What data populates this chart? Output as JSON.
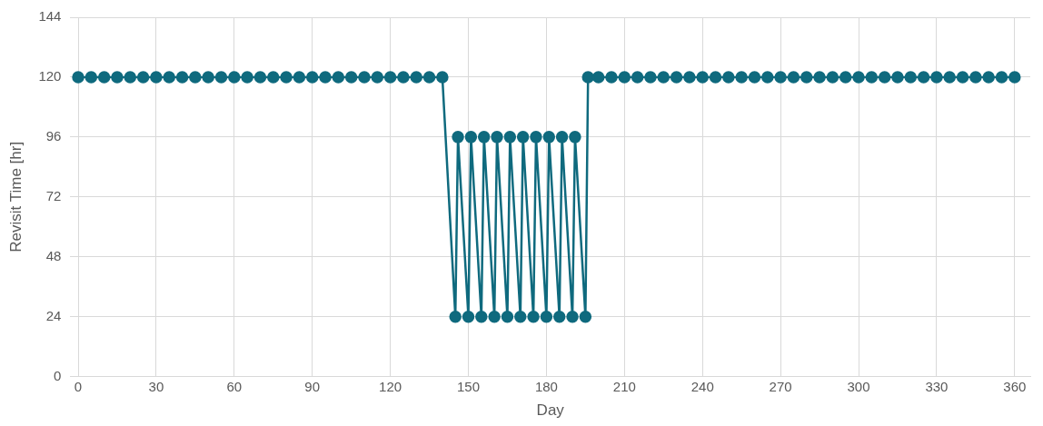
{
  "chart_data": {
    "type": "line",
    "xlabel": "Day",
    "ylabel": "Revisit Time [hr]",
    "xlim": [
      -3,
      366
    ],
    "ylim": [
      0,
      144
    ],
    "xticks": [
      0,
      30,
      60,
      90,
      120,
      150,
      180,
      210,
      240,
      270,
      300,
      330,
      360
    ],
    "yticks": [
      0,
      24,
      48,
      72,
      96,
      120,
      144
    ],
    "grid": true,
    "legend": false,
    "marker": "circle",
    "line_style": "solid",
    "series": [
      {
        "color": "#0f6a7e",
        "x": [
          0,
          5,
          10,
          15,
          20,
          25,
          30,
          35,
          40,
          45,
          50,
          55,
          60,
          65,
          70,
          75,
          80,
          85,
          90,
          95,
          100,
          105,
          110,
          115,
          120,
          125,
          130,
          135,
          140,
          145,
          146,
          150,
          151,
          155,
          156,
          160,
          161,
          165,
          166,
          170,
          171,
          175,
          176,
          180,
          181,
          185,
          186,
          190,
          191,
          195,
          196,
          200,
          205,
          210,
          215,
          220,
          225,
          230,
          235,
          240,
          245,
          250,
          255,
          260,
          265,
          270,
          275,
          280,
          285,
          290,
          295,
          300,
          305,
          310,
          315,
          320,
          325,
          330,
          335,
          340,
          345,
          350,
          355,
          360
        ],
        "values": [
          120,
          120,
          120,
          120,
          120,
          120,
          120,
          120,
          120,
          120,
          120,
          120,
          120,
          120,
          120,
          120,
          120,
          120,
          120,
          120,
          120,
          120,
          120,
          120,
          120,
          120,
          120,
          120,
          120,
          24,
          96,
          24,
          96,
          24,
          96,
          24,
          96,
          24,
          96,
          24,
          96,
          24,
          96,
          24,
          96,
          24,
          96,
          24,
          96,
          24,
          120,
          120,
          120,
          120,
          120,
          120,
          120,
          120,
          120,
          120,
          120,
          120,
          120,
          120,
          120,
          120,
          120,
          120,
          120,
          120,
          120,
          120,
          120,
          120,
          120,
          120,
          120,
          120,
          120,
          120,
          120,
          120,
          120,
          120
        ]
      }
    ]
  }
}
